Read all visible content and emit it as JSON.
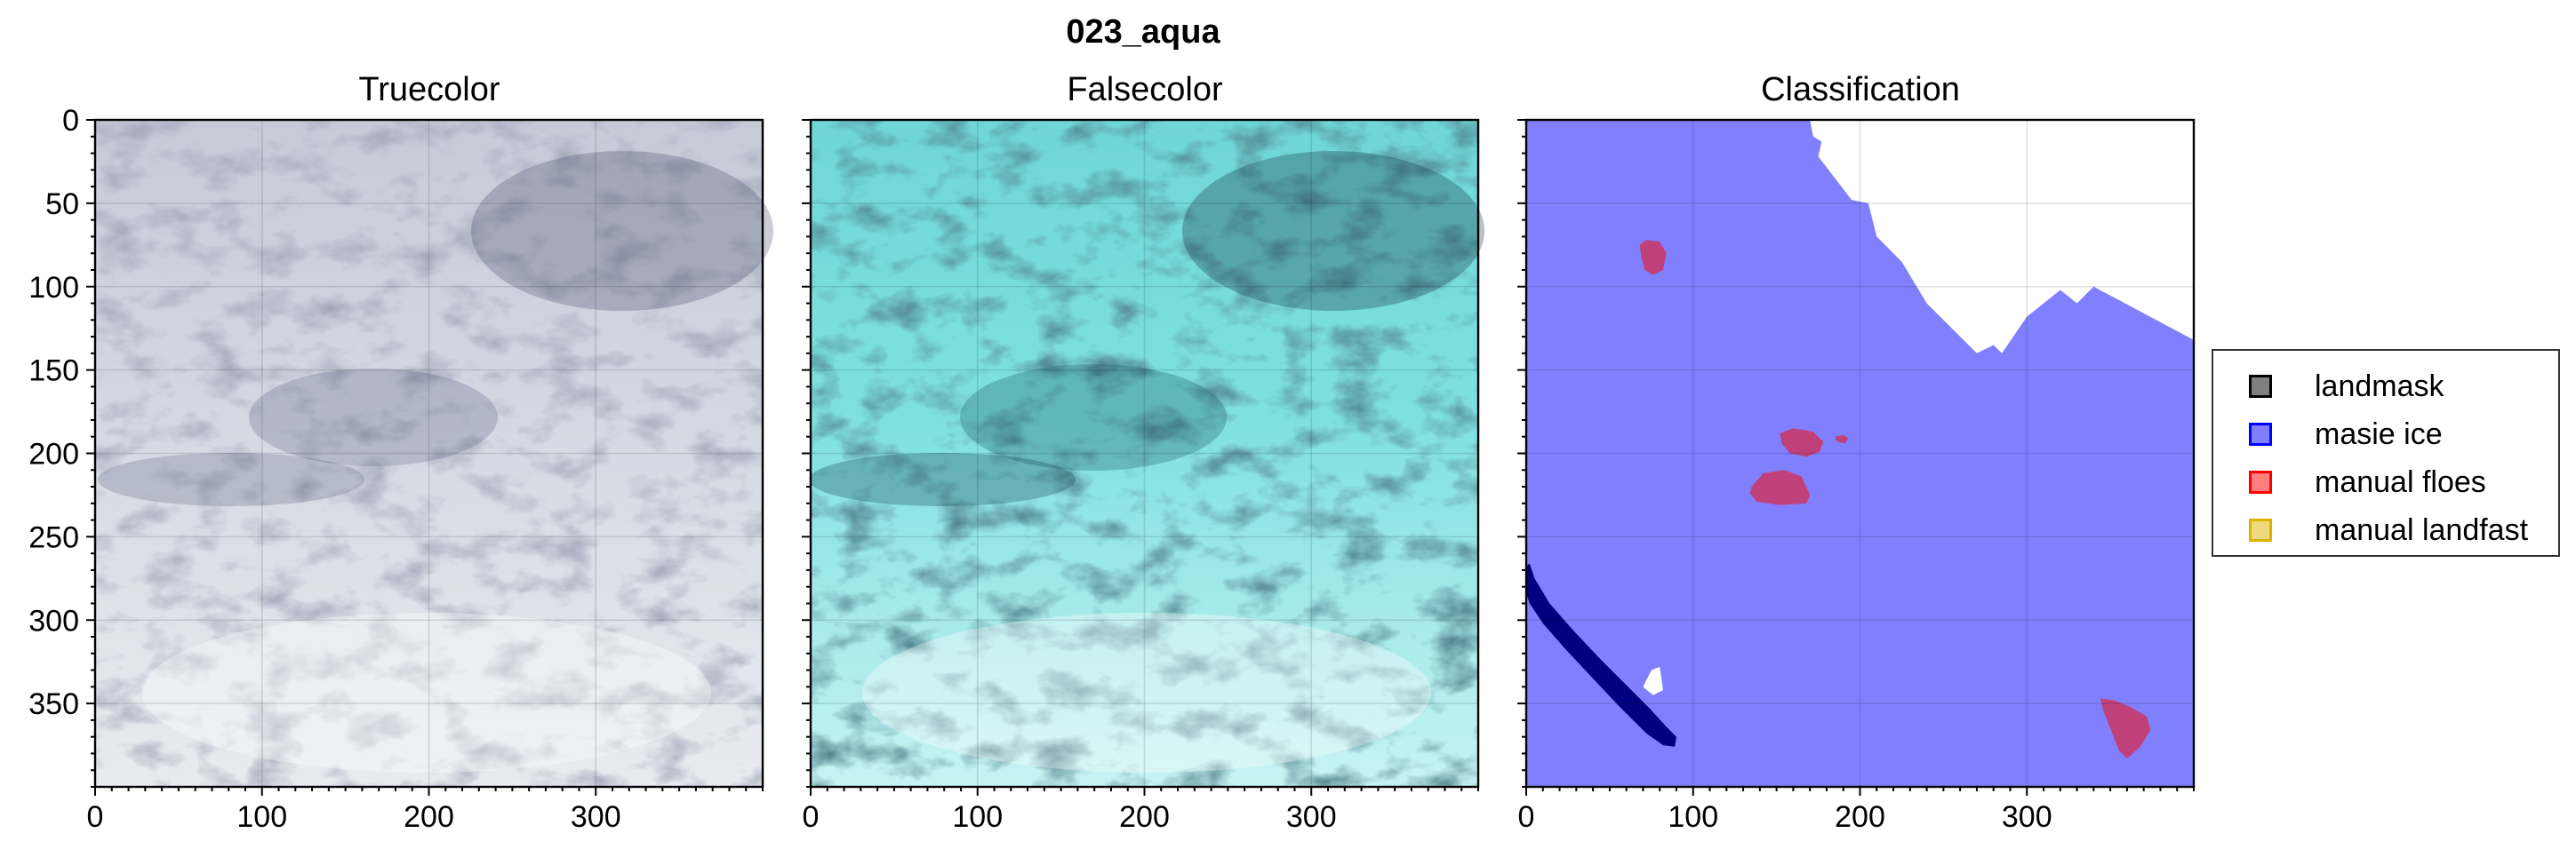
{
  "figure": {
    "suptitle": "023_aqua"
  },
  "chart_data": [
    {
      "type": "image",
      "title": "Truecolor",
      "xlim": [
        0,
        400
      ],
      "ylim": [
        400,
        0
      ],
      "xticks": [
        0,
        100,
        200,
        300
      ],
      "yticks": [
        0,
        50,
        100,
        150,
        200,
        250,
        300,
        350
      ],
      "grid": true,
      "palette": [
        "#d8dde8",
        "#c4cad8",
        "#e8ebf0",
        "#9aa3b8",
        "#4a5370",
        "#f2f2f4"
      ]
    },
    {
      "type": "image",
      "title": "Falsecolor",
      "xlim": [
        0,
        400
      ],
      "ylim": [
        400,
        0
      ],
      "xticks": [
        0,
        100,
        200,
        300
      ],
      "yticks": [
        0,
        50,
        100,
        150,
        200,
        250,
        300,
        350
      ],
      "grid": true,
      "palette": [
        "#5fe0e0",
        "#8ee8e8",
        "#bff1f1",
        "#3aa8b0",
        "#1f4f5a",
        "#e4fbfb"
      ]
    },
    {
      "type": "image",
      "title": "Classification",
      "xlim": [
        0,
        400
      ],
      "ylim": [
        400,
        0
      ],
      "xticks": [
        0,
        100,
        200,
        300
      ],
      "yticks": [
        0,
        50,
        100,
        150,
        200,
        250,
        300,
        350
      ],
      "grid": true,
      "legend": {
        "position": "right",
        "entries": [
          {
            "label": "landmask",
            "color": "#000000"
          },
          {
            "label": "masie ice",
            "color": "#0000ff"
          },
          {
            "label": "manual floes",
            "color": "#ff0000"
          },
          {
            "label": "manual landfast",
            "color": "#ddb300"
          }
        ]
      },
      "regions": {
        "masie_ice_polygon": [
          [
            0,
            0
          ],
          [
            170,
            0
          ],
          [
            172,
            10
          ],
          [
            177,
            13
          ],
          [
            175,
            22
          ],
          [
            195,
            48
          ],
          [
            205,
            50
          ],
          [
            210,
            70
          ],
          [
            225,
            85
          ],
          [
            240,
            110
          ],
          [
            270,
            140
          ],
          [
            280,
            135
          ],
          [
            285,
            140
          ],
          [
            300,
            118
          ],
          [
            320,
            102
          ],
          [
            330,
            110
          ],
          [
            340,
            100
          ],
          [
            400,
            132
          ],
          [
            400,
            272
          ],
          [
            390,
            265
          ],
          [
            380,
            255
          ],
          [
            350,
            240
          ],
          [
            345,
            230
          ],
          [
            375,
            180
          ],
          [
            400,
            200
          ],
          [
            400,
            400
          ],
          [
            0,
            400
          ]
        ],
        "holes": [
          [
            [
              70,
              340
            ],
            [
              75,
              330
            ],
            [
              80,
              328
            ],
            [
              82,
              342
            ],
            [
              76,
              345
            ]
          ]
        ],
        "floes": [
          [
            [
              68,
              75
            ],
            [
              72,
              72
            ],
            [
              80,
              73
            ],
            [
              84,
              80
            ],
            [
              82,
              90
            ],
            [
              76,
              93
            ],
            [
              71,
              90
            ],
            [
              69,
              82
            ]
          ],
          [
            [
              152,
              188
            ],
            [
              160,
              185
            ],
            [
              172,
              187
            ],
            [
              178,
              193
            ],
            [
              176,
              199
            ],
            [
              168,
              202
            ],
            [
              158,
              200
            ],
            [
              153,
              194
            ]
          ],
          [
            [
              185,
              190
            ],
            [
              190,
              189
            ],
            [
              193,
              191
            ],
            [
              191,
              194
            ],
            [
              186,
              193
            ]
          ],
          [
            [
              135,
              220
            ],
            [
              142,
              212
            ],
            [
              155,
              210
            ],
            [
              165,
              214
            ],
            [
              170,
              225
            ],
            [
              168,
              230
            ],
            [
              152,
              231
            ],
            [
              138,
              229
            ],
            [
              134,
              224
            ]
          ],
          [
            [
              344,
              347
            ],
            [
              352,
              348
            ],
            [
              362,
              352
            ],
            [
              372,
              358
            ],
            [
              374,
              366
            ],
            [
              368,
              376
            ],
            [
              360,
              383
            ],
            [
              355,
              378
            ],
            [
              350,
              365
            ],
            [
              346,
              355
            ]
          ]
        ],
        "landmask": [
          [
            0,
            268
          ],
          [
            2,
            266
          ],
          [
            5,
            275
          ],
          [
            14,
            290
          ],
          [
            28,
            306
          ],
          [
            44,
            323
          ],
          [
            60,
            339
          ],
          [
            74,
            353
          ],
          [
            84,
            364
          ],
          [
            90,
            370
          ],
          [
            89,
            376
          ],
          [
            82,
            375
          ],
          [
            72,
            368
          ],
          [
            56,
            352
          ],
          [
            40,
            335
          ],
          [
            24,
            318
          ],
          [
            10,
            302
          ],
          [
            2,
            290
          ],
          [
            0,
            284
          ]
        ]
      }
    }
  ]
}
